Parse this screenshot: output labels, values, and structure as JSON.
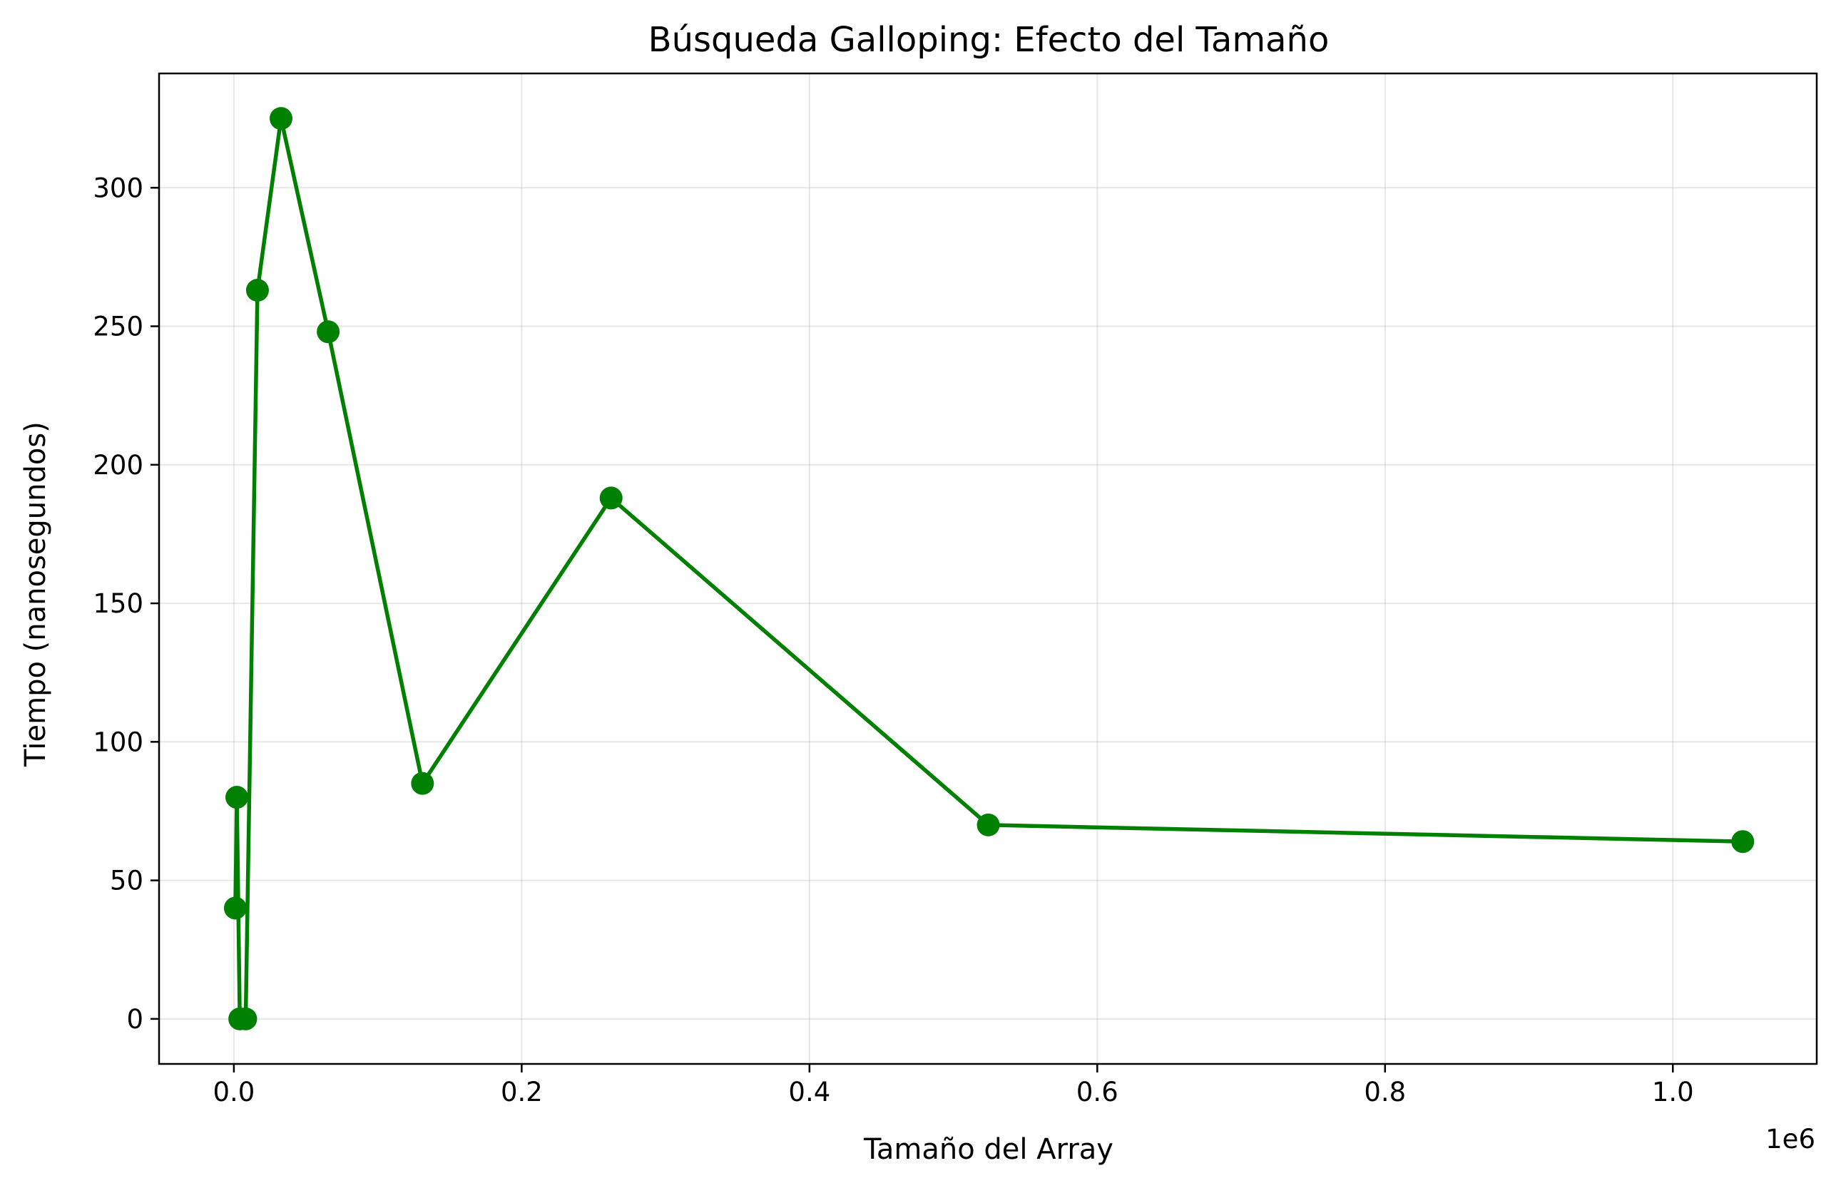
{
  "chart_data": {
    "type": "line",
    "title": "Búsqueda Galloping: Efecto del Tamaño",
    "xlabel": "Tamaño del Array",
    "ylabel": "Tiempo (nanosegundos)",
    "x_offset_label": "1e6",
    "xlim": [
      -0.052,
      1.1
    ],
    "ylim": [
      -16.25,
      341.25
    ],
    "x_ticks": [
      0.0,
      0.2,
      0.4,
      0.6,
      0.8,
      1.0
    ],
    "x_tick_labels": [
      "0.0",
      "0.2",
      "0.4",
      "0.6",
      "0.8",
      "1.0"
    ],
    "y_ticks": [
      0,
      50,
      100,
      150,
      200,
      250,
      300
    ],
    "y_tick_labels": [
      "0",
      "50",
      "100",
      "150",
      "200",
      "250",
      "300"
    ],
    "grid": true,
    "series": [
      {
        "color": "#008000",
        "marker": "circle",
        "x": [
          0.001024,
          0.002048,
          0.004096,
          0.008192,
          0.016384,
          0.032768,
          0.065536,
          0.131072,
          0.262144,
          0.524288,
          1.048576
        ],
        "y": [
          40,
          80,
          0,
          0,
          263,
          325,
          248,
          85,
          188,
          70,
          64
        ]
      }
    ]
  }
}
